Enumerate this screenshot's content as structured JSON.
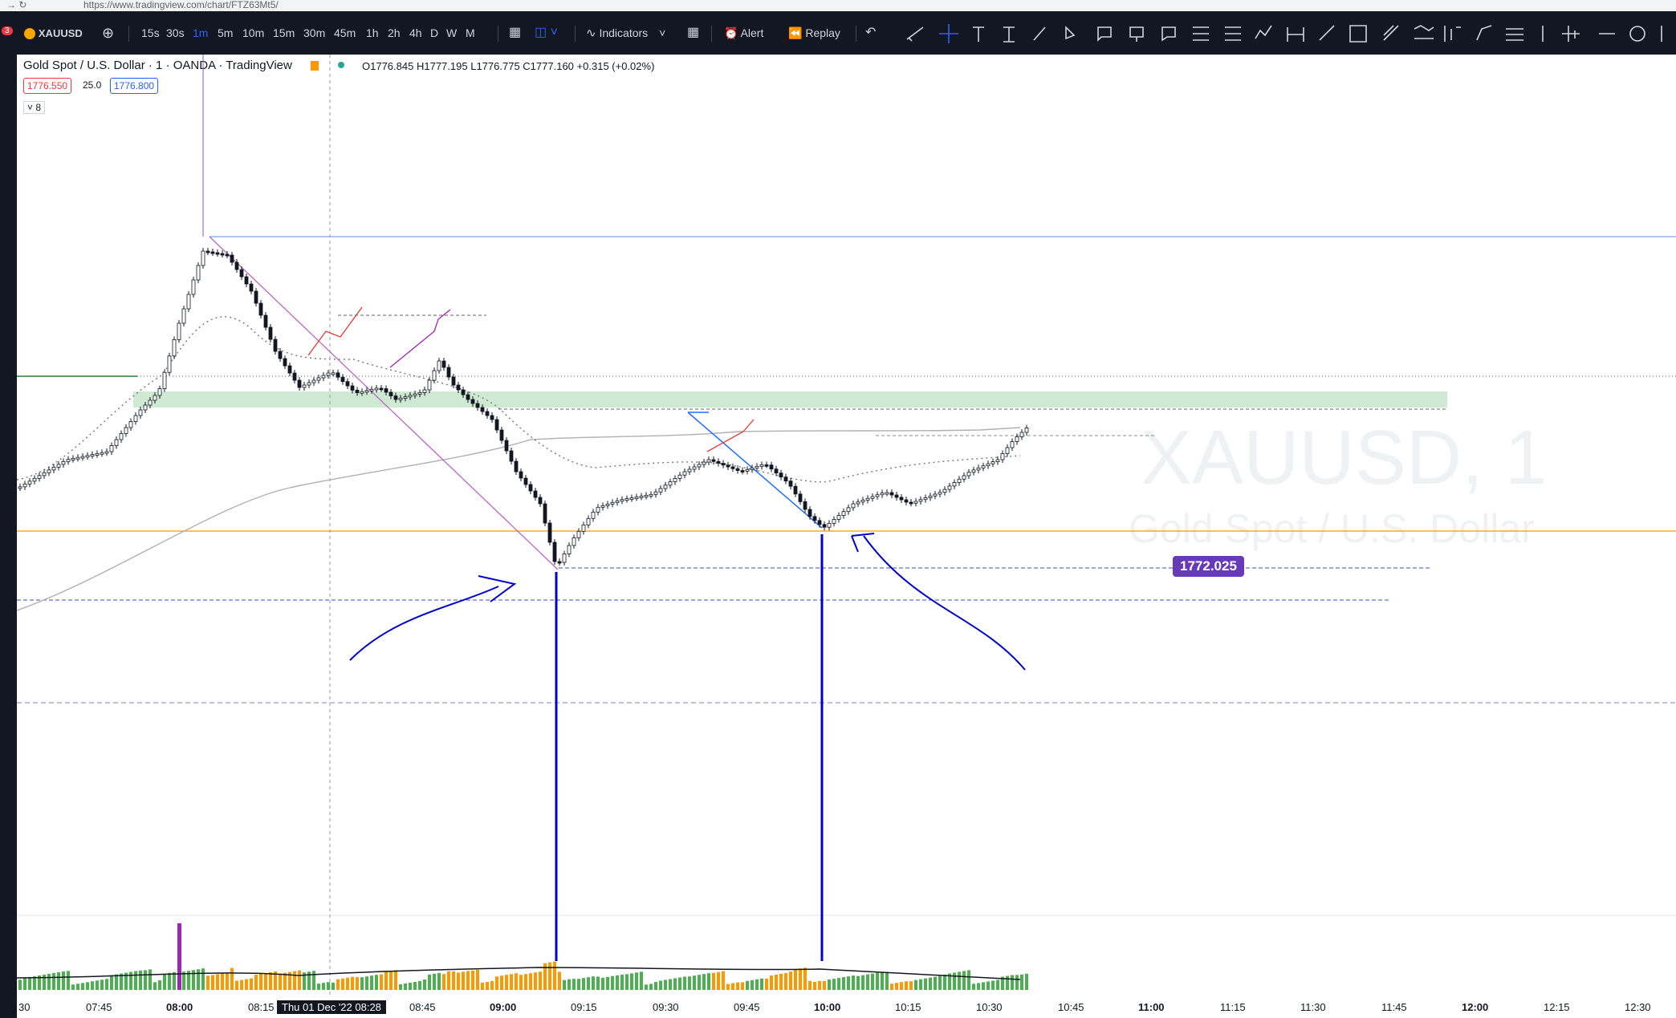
{
  "browser": {
    "url": "https://www.tradingview.com/chart/FTZ63Mt5/",
    "nav_icons": [
      "back-icon",
      "reload-icon"
    ]
  },
  "toolbar": {
    "notification_count": "3",
    "symbol": "XAUUSD",
    "intervals": [
      "15s",
      "30s",
      "1m",
      "5m",
      "10m",
      "15m",
      "30m",
      "45m",
      "1h",
      "2h",
      "4h",
      "D",
      "W",
      "M"
    ],
    "active_interval": "1m",
    "indicators_label": "Indicators",
    "alert_label": "Alert",
    "replay_label": "Replay"
  },
  "legend": {
    "title": "Gold Spot / U.S. Dollar · 1 · OANDA · TradingView",
    "open": "O1776.845",
    "high": "H1777.195",
    "low": "L1776.775",
    "close": "C1777.160",
    "change": "+0.315 (+0.02%)",
    "sell_price": "1776.550",
    "spread": "25.0",
    "buy_price": "1776.800",
    "indicator_count": "8",
    "accent_sell": "#f23645",
    "accent_buy": "#2962ff"
  },
  "watermark": {
    "symbol": "XAUUSD, 1",
    "name": "Gold Spot / U.S. Dollar"
  },
  "price_tag": "1772.025",
  "time_axis": {
    "labels": [
      "30",
      "07:45",
      "08:00",
      "08:15",
      "08:45",
      "09:00",
      "09:15",
      "09:30",
      "09:45",
      "10:00",
      "10:15",
      "10:30",
      "10:45",
      "11:00",
      "11:15",
      "11:30",
      "11:45",
      "12:00",
      "12:15",
      "12:30"
    ],
    "crosshair_label": "Thu 01 Dec '22   08:28"
  },
  "chart_data": {
    "type": "candlestick",
    "symbol": "XAUUSD",
    "interval": "1",
    "annotations": [
      "1772.025"
    ],
    "colors": {
      "up": "#131722",
      "down": "#131722",
      "volume_up": "#4caf50",
      "volume_down": "#ff9800",
      "support_zone": "#c8e6c9",
      "level_orange": "#ff9800",
      "drawing_blue": "#0000cc",
      "drawing_purple": "#9c27b0"
    }
  }
}
